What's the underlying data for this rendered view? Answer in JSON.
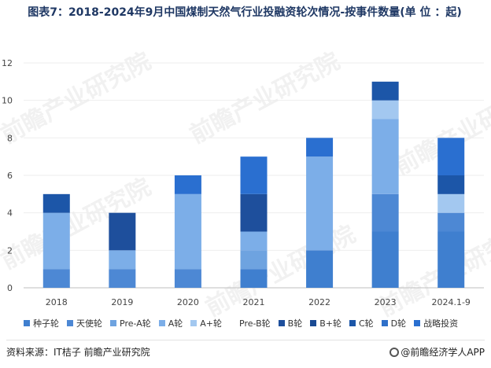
{
  "title": "图表7：2018-2024年9月中国煤制天然气行业投融资轮次情况-按事件数量(单 位 ：起)",
  "source": "资料来源：IT桔子 前瞻产业研究院",
  "brand": "@前瞻经济学人APP",
  "watermark": "前瞻产业研究院",
  "chart_data": {
    "type": "bar",
    "stacked": true,
    "categories": [
      "2018",
      "2019",
      "2020",
      "2021",
      "2022",
      "2023",
      "2024.1-9"
    ],
    "ylim": [
      0,
      12
    ],
    "yticks": [
      0,
      2,
      4,
      6,
      8,
      10,
      12
    ],
    "legend_position": "bottom",
    "series": [
      {
        "name": "种子轮",
        "color": "#3f7fcf",
        "values": [
          0,
          0,
          0,
          1,
          2,
          3,
          3
        ]
      },
      {
        "name": "天使轮",
        "color": "#4d88d4",
        "values": [
          1,
          1,
          1,
          0,
          0,
          2,
          1
        ]
      },
      {
        "name": "Pre-A轮",
        "color": "#6ea3e0",
        "values": [
          0,
          0,
          0,
          1,
          0,
          0,
          0
        ]
      },
      {
        "name": "A轮",
        "color": "#7caee8",
        "values": [
          3,
          1,
          4,
          1,
          5,
          4,
          0
        ]
      },
      {
        "name": "A+轮",
        "color": "#a3c8f0",
        "values": [
          0,
          0,
          0,
          0,
          0,
          1,
          1
        ]
      },
      {
        "name": "Pre-B轮",
        "color": "#ffffff",
        "values": [
          0,
          0,
          0,
          0,
          0,
          0,
          0
        ]
      },
      {
        "name": "B轮",
        "color": "#1e4f9c",
        "values": [
          0,
          2,
          0,
          2,
          0,
          0,
          0
        ]
      },
      {
        "name": "B+轮",
        "color": "#1a4a93",
        "values": [
          0,
          0,
          0,
          0,
          0,
          0,
          0
        ]
      },
      {
        "name": "C轮",
        "color": "#1c56a8",
        "values": [
          1,
          0,
          0,
          0,
          0,
          1,
          1
        ]
      },
      {
        "name": "D轮",
        "color": "#2f70c9",
        "values": [
          0,
          0,
          0,
          0,
          0,
          0,
          0
        ]
      },
      {
        "name": "战略投资",
        "color": "#2a6fd0",
        "values": [
          0,
          0,
          1,
          2,
          1,
          0,
          2
        ]
      }
    ]
  }
}
